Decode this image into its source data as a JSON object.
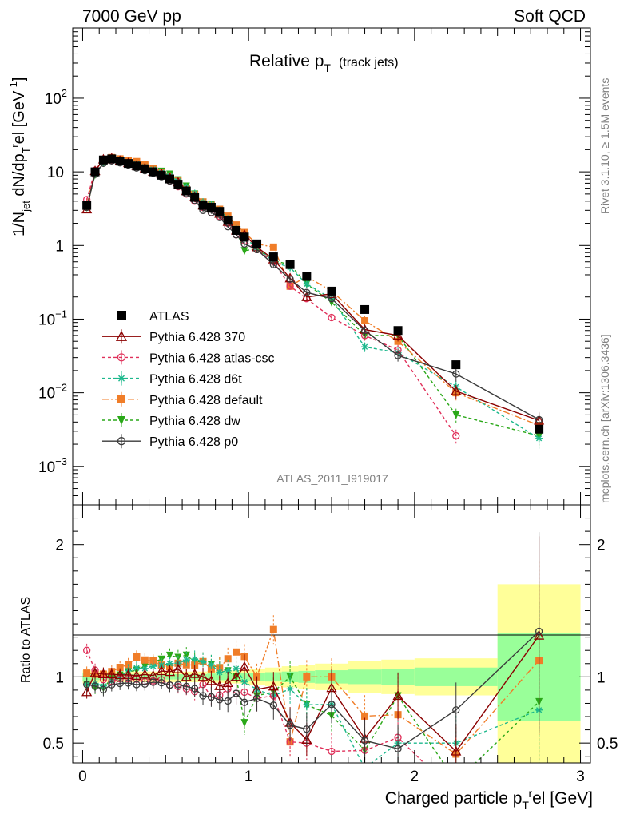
{
  "header": {
    "left": "7000 GeV pp",
    "right": "Soft QCD"
  },
  "side_labels": {
    "rivet": "Rivet 3.1.10, ≥ 1.5M events",
    "mcplots": "mcplots.cern.ch [arXiv:1306.3436]"
  },
  "analysis_id": "ATLAS_2011_I919017",
  "chart_data": [
    {
      "type": "line",
      "title_main": "Relative p",
      "title_sub": "T",
      "title_extra": "(track jets)",
      "ylabel": "1/N_jet dN/dp_T^rel [GeV^-1]",
      "ylabel_parts": {
        "a": "1/N",
        "b": "jet",
        "c": " dN/dp",
        "d": "T",
        "e": "r",
        "f": "el [GeV",
        "g": "-1",
        "h": "]"
      },
      "xlim": [
        -0.06,
        3.06
      ],
      "ylim": [
        0.0003,
        900
      ],
      "yscale": "log",
      "yticks": [
        {
          "v": 0.001,
          "base": "10",
          "exp": "−3"
        },
        {
          "v": 0.01,
          "base": "10",
          "exp": "−2"
        },
        {
          "v": 0.1,
          "base": "10",
          "exp": "−1"
        },
        {
          "v": 1,
          "base": "1",
          "exp": ""
        },
        {
          "v": 10,
          "base": "10",
          "exp": ""
        },
        {
          "v": 100,
          "base": "10",
          "exp": "2"
        }
      ],
      "legend_position": "middle-left",
      "series": [
        {
          "name": "ATLAS",
          "color": "#000000",
          "marker": "square",
          "x": [
            0.025,
            0.075,
            0.125,
            0.175,
            0.225,
            0.275,
            0.325,
            0.375,
            0.425,
            0.475,
            0.525,
            0.575,
            0.625,
            0.675,
            0.725,
            0.775,
            0.825,
            0.875,
            0.925,
            0.975,
            1.05,
            1.15,
            1.25,
            1.35,
            1.5,
            1.7,
            1.9,
            2.25,
            2.75
          ],
          "y": [
            3.5,
            10,
            14.5,
            15,
            14,
            13,
            12,
            11,
            10,
            9,
            8,
            6.8,
            5.5,
            4.5,
            3.5,
            3.3,
            2.9,
            2.2,
            1.6,
            1.3,
            1.05,
            0.7,
            0.55,
            0.38,
            0.24,
            0.135,
            0.07,
            0.024,
            0.0032
          ]
        },
        {
          "name": "Pythia 6.428 370",
          "color": "#8b0000",
          "marker": "triangle-open",
          "dash": "",
          "x": [
            0.025,
            0.075,
            0.125,
            0.175,
            0.225,
            0.275,
            0.325,
            0.375,
            0.425,
            0.475,
            0.525,
            0.575,
            0.625,
            0.675,
            0.725,
            0.775,
            0.825,
            0.875,
            0.925,
            0.975,
            1.05,
            1.15,
            1.25,
            1.35,
            1.5,
            1.7,
            1.9,
            2.25,
            2.75
          ],
          "y": [
            3.1,
            10.3,
            14.8,
            15.3,
            14.2,
            13.2,
            12.1,
            11.2,
            10.1,
            9.4,
            8.3,
            7.2,
            5.5,
            4.6,
            3.5,
            3.2,
            2.7,
            2.1,
            1.6,
            1.4,
            0.95,
            0.65,
            0.36,
            0.2,
            0.22,
            0.072,
            0.06,
            0.0105,
            0.0042
          ]
        },
        {
          "name": "Pythia 6.428 atlas-csc",
          "color": "#e0305a",
          "marker": "circle-open",
          "dash": "4,3",
          "x": [
            0.025,
            0.075,
            0.125,
            0.175,
            0.225,
            0.275,
            0.325,
            0.375,
            0.425,
            0.475,
            0.525,
            0.575,
            0.625,
            0.675,
            0.725,
            0.775,
            0.825,
            0.875,
            0.925,
            0.975,
            1.05,
            1.15,
            1.25,
            1.35,
            1.5,
            1.7,
            1.9,
            2.25
          ],
          "y": [
            4.2,
            10.5,
            14.2,
            14.5,
            13.8,
            12.8,
            11.8,
            10.6,
            9.7,
            8.8,
            7.5,
            6.3,
            5.0,
            4.0,
            3.3,
            2.8,
            2.5,
            2.0,
            1.4,
            1.15,
            0.88,
            0.6,
            0.28,
            0.19,
            0.105,
            0.06,
            0.038,
            0.0026
          ]
        },
        {
          "name": "Pythia 6.428 d6t",
          "color": "#1cb88c",
          "marker": "asterisk",
          "dash": "4,3",
          "x": [
            0.025,
            0.075,
            0.125,
            0.175,
            0.225,
            0.275,
            0.325,
            0.375,
            0.425,
            0.475,
            0.525,
            0.575,
            0.625,
            0.675,
            0.725,
            0.775,
            0.825,
            0.875,
            0.925,
            0.975,
            1.05,
            1.15,
            1.25,
            1.35,
            1.5,
            1.7,
            1.9,
            2.25,
            2.75
          ],
          "y": [
            3.3,
            9.5,
            13.5,
            14.5,
            14,
            13.6,
            12.8,
            11.7,
            10.8,
            9.8,
            8.8,
            7.5,
            6.2,
            5.1,
            3.9,
            3.6,
            3.0,
            2.3,
            1.7,
            1.25,
            0.95,
            0.6,
            0.5,
            0.3,
            0.19,
            0.042,
            0.035,
            0.012,
            0.0024
          ]
        },
        {
          "name": "Pythia 6.428 default",
          "color": "#f07d28",
          "marker": "square",
          "dash": "8,3,2,3",
          "x": [
            0.025,
            0.075,
            0.125,
            0.175,
            0.225,
            0.275,
            0.325,
            0.375,
            0.425,
            0.475,
            0.525,
            0.575,
            0.625,
            0.675,
            0.725,
            0.775,
            0.825,
            0.875,
            0.925,
            0.975,
            1.05,
            1.15,
            1.25,
            1.35,
            1.5,
            1.7,
            1.9,
            2.25,
            2.75
          ],
          "y": [
            3.6,
            10.2,
            14.8,
            15.6,
            15,
            14.2,
            13.8,
            12.4,
            11.2,
            9.8,
            8.6,
            7.5,
            6.0,
            4.9,
            3.9,
            3.5,
            3.1,
            2.5,
            1.9,
            1.5,
            1.05,
            0.95,
            0.28,
            0.38,
            0.24,
            0.095,
            0.05,
            0.01,
            0.0036
          ]
        },
        {
          "name": "Pythia 6.428 dw",
          "color": "#2aa818",
          "marker": "triangle-down",
          "dash": "4,3",
          "x": [
            0.025,
            0.075,
            0.125,
            0.175,
            0.225,
            0.275,
            0.325,
            0.375,
            0.425,
            0.475,
            0.525,
            0.575,
            0.625,
            0.675,
            0.725,
            0.775,
            0.825,
            0.875,
            0.925,
            0.975,
            1.05,
            1.15,
            1.25,
            1.35,
            1.5,
            1.7,
            1.9,
            2.25,
            2.75
          ],
          "y": [
            3.3,
            9.2,
            13.3,
            14.8,
            14.2,
            13.5,
            12.6,
            11.9,
            11.1,
            10.2,
            9.3,
            7.8,
            6.4,
            5.0,
            3.9,
            3.6,
            3.1,
            2.3,
            1.6,
            0.85,
            0.9,
            0.62,
            0.55,
            0.3,
            0.17,
            0.06,
            0.06,
            0.005,
            0.0026
          ]
        },
        {
          "name": "Pythia 6.428 p0",
          "color": "#3a3a3a",
          "marker": "circle-open",
          "dash": "",
          "x": [
            0.025,
            0.075,
            0.125,
            0.175,
            0.225,
            0.275,
            0.325,
            0.375,
            0.425,
            0.475,
            0.525,
            0.575,
            0.625,
            0.675,
            0.725,
            0.775,
            0.825,
            0.875,
            0.925,
            0.975,
            1.05,
            1.15,
            1.25,
            1.35,
            1.5,
            1.7,
            1.9,
            2.25,
            2.75
          ],
          "y": [
            3.3,
            9.3,
            13.1,
            14.1,
            13.3,
            12.4,
            11.3,
            10.4,
            9.6,
            8.6,
            7.5,
            6.4,
            5.1,
            4.1,
            3.0,
            2.8,
            2.4,
            1.8,
            1.4,
            1.05,
            0.88,
            0.55,
            0.35,
            0.23,
            0.19,
            0.07,
            0.032,
            0.018,
            0.0043
          ]
        }
      ]
    },
    {
      "type": "line",
      "ylabel": "Ratio to ATLAS",
      "xlabel": "Charged particle p",
      "xlabel_parts": {
        "a": "Charged particle p",
        "b": "T",
        "c": "r",
        "d": "el [GeV]"
      },
      "xlim": [
        -0.06,
        3.06
      ],
      "ylim": [
        0.35,
        2.3
      ],
      "xticks": [
        0,
        1,
        2,
        3
      ],
      "yticks": [
        0.5,
        1,
        2
      ],
      "bands": {
        "x_edges": [
          0,
          0.05,
          0.1,
          0.15,
          0.2,
          0.25,
          0.3,
          0.35,
          0.4,
          0.45,
          0.5,
          0.55,
          0.6,
          0.65,
          0.7,
          0.75,
          0.8,
          0.85,
          0.9,
          0.95,
          1.0,
          1.1,
          1.2,
          1.3,
          1.4,
          1.6,
          1.8,
          2.0,
          2.5,
          3.0
        ],
        "green_half": [
          0.03,
          0.025,
          0.02,
          0.02,
          0.02,
          0.02,
          0.02,
          0.02,
          0.02,
          0.02,
          0.02,
          0.02,
          0.02,
          0.02,
          0.02,
          0.025,
          0.025,
          0.025,
          0.03,
          0.03,
          0.03,
          0.035,
          0.04,
          0.045,
          0.05,
          0.055,
          0.06,
          0.07,
          0.33
        ],
        "yellow_half": [
          0.05,
          0.045,
          0.04,
          0.04,
          0.04,
          0.04,
          0.04,
          0.04,
          0.04,
          0.04,
          0.04,
          0.04,
          0.04,
          0.04,
          0.04,
          0.045,
          0.045,
          0.05,
          0.05,
          0.05,
          0.06,
          0.07,
          0.08,
          0.09,
          0.1,
          0.12,
          0.13,
          0.14,
          0.7
        ]
      }
    }
  ]
}
